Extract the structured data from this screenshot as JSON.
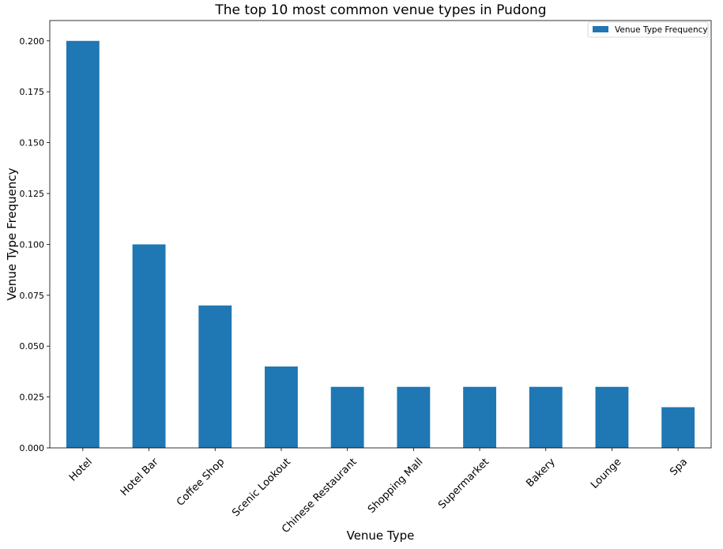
{
  "chart_data": {
    "type": "bar",
    "title": "The top 10 most common venue types in Pudong",
    "xlabel": "Venue Type",
    "ylabel": "Venue Type Frequency",
    "categories": [
      "Hotel",
      "Hotel Bar",
      "Coffee Shop",
      "Scenic Lookout",
      "Chinese Restaurant",
      "Shopping Mall",
      "Supermarket",
      "Bakery",
      "Lounge",
      "Spa"
    ],
    "series": [
      {
        "name": "Venue Type Frequency",
        "values": [
          0.2,
          0.1,
          0.07,
          0.04,
          0.03,
          0.03,
          0.03,
          0.03,
          0.03,
          0.02
        ],
        "color": "#1f77b4"
      }
    ],
    "ylim": [
      0,
      0.21
    ],
    "yticks": [
      "0.000",
      "0.025",
      "0.050",
      "0.075",
      "0.100",
      "0.125",
      "0.150",
      "0.175",
      "0.200"
    ],
    "grid": false,
    "legend_position": "top-right"
  }
}
